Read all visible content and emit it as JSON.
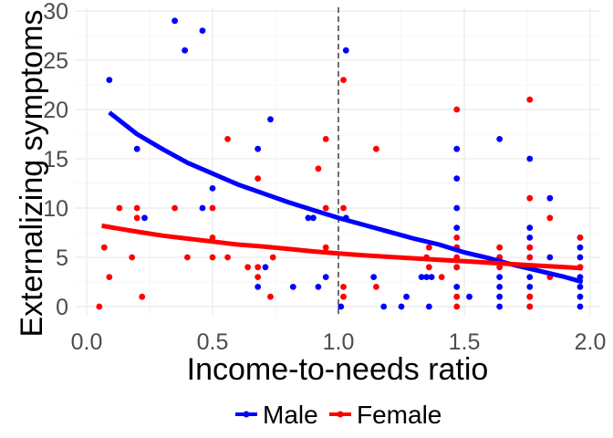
{
  "chart_data": {
    "type": "scatter",
    "title": "",
    "xlabel": "Income-to-needs ratio",
    "ylabel": "Externalizing symptoms",
    "xlim": [
      0.0,
      2.0
    ],
    "ylim": [
      0,
      30
    ],
    "x_ticks": [
      "0.0",
      "0.5",
      "1.0",
      "1.5",
      "2.0"
    ],
    "y_ticks": [
      "0",
      "5",
      "10",
      "15",
      "20",
      "25",
      "30"
    ],
    "grid": true,
    "legend_position": "bottom",
    "reference_line": {
      "x": 1.0,
      "style": "dashed"
    },
    "series": [
      {
        "name": "Male",
        "color": "#0000ff",
        "points": [
          [
            0.09,
            23
          ],
          [
            0.2,
            16
          ],
          [
            0.23,
            9
          ],
          [
            0.35,
            29
          ],
          [
            0.39,
            26
          ],
          [
            0.46,
            28
          ],
          [
            0.46,
            10
          ],
          [
            0.5,
            12
          ],
          [
            0.68,
            16
          ],
          [
            0.68,
            2
          ],
          [
            0.71,
            4
          ],
          [
            0.73,
            19
          ],
          [
            0.82,
            2
          ],
          [
            0.88,
            9
          ],
          [
            0.9,
            9
          ],
          [
            0.92,
            2
          ],
          [
            0.95,
            3
          ],
          [
            1.01,
            0
          ],
          [
            1.03,
            26
          ],
          [
            1.03,
            9
          ],
          [
            1.14,
            3
          ],
          [
            1.18,
            0
          ],
          [
            1.25,
            0
          ],
          [
            1.27,
            1
          ],
          [
            1.33,
            3
          ],
          [
            1.35,
            3
          ],
          [
            1.36,
            0
          ],
          [
            1.37,
            3
          ],
          [
            1.47,
            16
          ],
          [
            1.47,
            13
          ],
          [
            1.47,
            10
          ],
          [
            1.47,
            8
          ],
          [
            1.47,
            6
          ],
          [
            1.47,
            4
          ],
          [
            1.47,
            2
          ],
          [
            1.52,
            1
          ],
          [
            1.64,
            17
          ],
          [
            1.64,
            5
          ],
          [
            1.64,
            3
          ],
          [
            1.64,
            2
          ],
          [
            1.64,
            1
          ],
          [
            1.64,
            0
          ],
          [
            1.76,
            15
          ],
          [
            1.76,
            8
          ],
          [
            1.76,
            7
          ],
          [
            1.76,
            6
          ],
          [
            1.76,
            5
          ],
          [
            1.76,
            4
          ],
          [
            1.76,
            3
          ],
          [
            1.76,
            2
          ],
          [
            1.76,
            1
          ],
          [
            1.76,
            0
          ],
          [
            1.84,
            11
          ],
          [
            1.84,
            5
          ],
          [
            1.96,
            7
          ],
          [
            1.96,
            6
          ],
          [
            1.96,
            5
          ],
          [
            1.96,
            4
          ],
          [
            1.96,
            3
          ],
          [
            1.96,
            2
          ],
          [
            1.96,
            1
          ],
          [
            1.96,
            0
          ]
        ],
        "fit": [
          [
            0.09,
            19.7
          ],
          [
            0.2,
            17.5
          ],
          [
            0.3,
            16.0
          ],
          [
            0.4,
            14.6
          ],
          [
            0.5,
            13.5
          ],
          [
            0.6,
            12.4
          ],
          [
            0.7,
            11.5
          ],
          [
            0.8,
            10.6
          ],
          [
            0.9,
            9.8
          ],
          [
            1.0,
            9.0
          ],
          [
            1.1,
            8.3
          ],
          [
            1.2,
            7.6
          ],
          [
            1.3,
            6.9
          ],
          [
            1.4,
            6.3
          ],
          [
            1.5,
            5.5
          ],
          [
            1.6,
            4.9
          ],
          [
            1.7,
            4.2
          ],
          [
            1.8,
            3.6
          ],
          [
            1.9,
            3.0
          ],
          [
            1.97,
            2.5
          ]
        ]
      },
      {
        "name": "Female",
        "color": "#ff0000",
        "points": [
          [
            0.05,
            0
          ],
          [
            0.07,
            6
          ],
          [
            0.09,
            3
          ],
          [
            0.13,
            10
          ],
          [
            0.18,
            5
          ],
          [
            0.2,
            10
          ],
          [
            0.2,
            9
          ],
          [
            0.22,
            1
          ],
          [
            0.35,
            10
          ],
          [
            0.4,
            5
          ],
          [
            0.5,
            10
          ],
          [
            0.5,
            7
          ],
          [
            0.5,
            5
          ],
          [
            0.56,
            17
          ],
          [
            0.56,
            5
          ],
          [
            0.64,
            4
          ],
          [
            0.68,
            13
          ],
          [
            0.68,
            4
          ],
          [
            0.68,
            3
          ],
          [
            0.73,
            1
          ],
          [
            0.74,
            5
          ],
          [
            0.92,
            14
          ],
          [
            0.95,
            17
          ],
          [
            0.95,
            10
          ],
          [
            0.95,
            6
          ],
          [
            1.02,
            23
          ],
          [
            1.02,
            10
          ],
          [
            1.02,
            2
          ],
          [
            1.02,
            1
          ],
          [
            1.15,
            16
          ],
          [
            1.15,
            2
          ],
          [
            1.35,
            5
          ],
          [
            1.36,
            6
          ],
          [
            1.36,
            4
          ],
          [
            1.41,
            3
          ],
          [
            1.47,
            20
          ],
          [
            1.47,
            7
          ],
          [
            1.47,
            6
          ],
          [
            1.47,
            5
          ],
          [
            1.47,
            4
          ],
          [
            1.47,
            1
          ],
          [
            1.47,
            0
          ],
          [
            1.64,
            6
          ],
          [
            1.64,
            5
          ],
          [
            1.64,
            4
          ],
          [
            1.76,
            21
          ],
          [
            1.76,
            11
          ],
          [
            1.76,
            6
          ],
          [
            1.76,
            5
          ],
          [
            1.76,
            1
          ],
          [
            1.76,
            0
          ],
          [
            1.84,
            9
          ],
          [
            1.84,
            3
          ],
          [
            1.96,
            7
          ],
          [
            1.96,
            4
          ]
        ],
        "fit": [
          [
            0.06,
            8.2
          ],
          [
            0.2,
            7.6
          ],
          [
            0.3,
            7.2
          ],
          [
            0.4,
            6.9
          ],
          [
            0.5,
            6.6
          ],
          [
            0.6,
            6.3
          ],
          [
            0.7,
            6.1
          ],
          [
            0.8,
            5.85
          ],
          [
            0.9,
            5.6
          ],
          [
            1.0,
            5.4
          ],
          [
            1.1,
            5.2
          ],
          [
            1.2,
            5.05
          ],
          [
            1.3,
            4.9
          ],
          [
            1.4,
            4.75
          ],
          [
            1.5,
            4.6
          ],
          [
            1.6,
            4.45
          ],
          [
            1.7,
            4.3
          ],
          [
            1.8,
            4.15
          ],
          [
            1.9,
            4.0
          ],
          [
            1.97,
            3.9
          ]
        ]
      }
    ]
  }
}
